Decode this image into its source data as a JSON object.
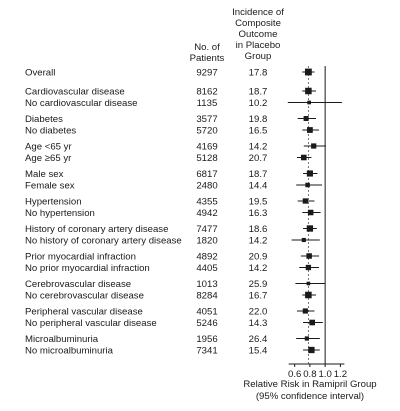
{
  "chart_data": {
    "type": "forest",
    "columns": {
      "n_header": [
        "No. of",
        "Patients"
      ],
      "incidence_header": [
        "Incidence of",
        "Composite",
        "Outcome",
        "in Placebo",
        "Group"
      ]
    },
    "x_axis": {
      "label": [
        "Relative Risk in Ramipril Group",
        "(95% confidence interval)"
      ],
      "ticks": [
        "0.6",
        "0.8",
        "1.0",
        "1.2"
      ],
      "tick_values": [
        0.6,
        0.8,
        1.0,
        1.2
      ],
      "range": [
        0.46,
        1.3
      ],
      "reference_line": 1.0
    },
    "rows": [
      {
        "label": "Overall",
        "n": "9297",
        "incidence": "17.8",
        "rr": 0.78,
        "lo": 0.7,
        "hi": 0.86
      },
      {
        "label": "Cardiovascular disease",
        "n": "8162",
        "incidence": "18.7",
        "rr": 0.78,
        "lo": 0.7,
        "hi": 0.88
      },
      {
        "label": "No cardiovascular disease",
        "n": "1135",
        "incidence": "10.2",
        "rr": 0.79,
        "lo": 0.51,
        "hi": 1.22
      },
      {
        "label": "Diabetes",
        "n": "3577",
        "incidence": "19.8",
        "rr": 0.75,
        "lo": 0.64,
        "hi": 0.88
      },
      {
        "label": "No diabetes",
        "n": "5720",
        "incidence": "16.5",
        "rr": 0.8,
        "lo": 0.7,
        "hi": 0.92
      },
      {
        "label": "Age <65 yr",
        "n": "4169",
        "incidence": "14.2",
        "rr": 0.85,
        "lo": 0.72,
        "hi": 1.01
      },
      {
        "label": "Age ≥65 yr",
        "n": "5128",
        "incidence": "20.7",
        "rr": 0.72,
        "lo": 0.63,
        "hi": 0.82
      },
      {
        "label": "Male sex",
        "n": "6817",
        "incidence": "18.7",
        "rr": 0.8,
        "lo": 0.71,
        "hi": 0.9
      },
      {
        "label": "Female sex",
        "n": "2480",
        "incidence": "14.4",
        "rr": 0.77,
        "lo": 0.62,
        "hi": 0.96
      },
      {
        "label": "Hypertension",
        "n": "4355",
        "incidence": "19.5",
        "rr": 0.74,
        "lo": 0.64,
        "hi": 0.86
      },
      {
        "label": "No hypertension",
        "n": "4942",
        "incidence": "16.3",
        "rr": 0.81,
        "lo": 0.7,
        "hi": 0.94
      },
      {
        "label": "History of coronary artery disease",
        "n": "7477",
        "incidence": "18.6",
        "rr": 0.8,
        "lo": 0.71,
        "hi": 0.89
      },
      {
        "label": "No history of coronary artery disease",
        "n": "1820",
        "incidence": "14.2",
        "rr": 0.72,
        "lo": 0.56,
        "hi": 0.93
      },
      {
        "label": "Prior myocardial infraction",
        "n": "4892",
        "incidence": "20.9",
        "rr": 0.79,
        "lo": 0.68,
        "hi": 0.92
      },
      {
        "label": "No prior myocardial infraction",
        "n": "4405",
        "incidence": "14.2",
        "rr": 0.78,
        "lo": 0.66,
        "hi": 0.92
      },
      {
        "label": "Cerebrovascular disease",
        "n": "1013",
        "incidence": "25.9",
        "rr": 0.78,
        "lo": 0.61,
        "hi": 1.0
      },
      {
        "label": "No cerebrovascular disease",
        "n": "8284",
        "incidence": "16.7",
        "rr": 0.78,
        "lo": 0.7,
        "hi": 0.88
      },
      {
        "label": "Peripheral vascular disease",
        "n": "4051",
        "incidence": "22.0",
        "rr": 0.74,
        "lo": 0.63,
        "hi": 0.86
      },
      {
        "label": "No peripheral vascular disease",
        "n": "5246",
        "incidence": "14.3",
        "rr": 0.83,
        "lo": 0.71,
        "hi": 0.97
      },
      {
        "label": "Microalbuminuria",
        "n": "1956",
        "incidence": "26.4",
        "rr": 0.76,
        "lo": 0.62,
        "hi": 0.93
      },
      {
        "label": "No microalbuminuria",
        "n": "7341",
        "incidence": "15.4",
        "rr": 0.82,
        "lo": 0.71,
        "hi": 0.93
      }
    ]
  }
}
